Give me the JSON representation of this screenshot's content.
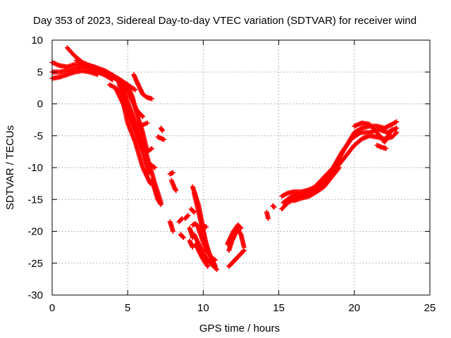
{
  "chart_data": {
    "type": "scatter",
    "title": "Day 353 of 2023, Sidereal Day-to-day VTEC variation (SDTVAR) for receiver wind",
    "xlabel": "GPS time / hours",
    "ylabel": "SDTVAR / TECUs",
    "xlim": [
      0,
      25
    ],
    "ylim": [
      -30,
      10
    ],
    "xticks": [
      0,
      5,
      10,
      15,
      20,
      25
    ],
    "yticks": [
      10,
      5,
      0,
      -5,
      -10,
      -15,
      -20,
      -25,
      -30
    ],
    "grid": true,
    "marker": "+",
    "series": [
      {
        "name": "SDTVAR",
        "color": "#ff0000",
        "tracks": [
          {
            "x": [
              0.0,
              0.5,
              1.0,
              1.5,
              2.0,
              2.5,
              3.0,
              3.5,
              4.0,
              4.5,
              5.0
            ],
            "y": [
              6.5,
              6.0,
              5.8,
              6.2,
              6.0,
              5.7,
              5.3,
              4.8,
              4.2,
              3.5,
              3.0
            ]
          },
          {
            "x": [
              0.0,
              0.5,
              1.0,
              1.5,
              2.0,
              2.5,
              3.0,
              3.5,
              4.0
            ],
            "y": [
              5.0,
              5.0,
              5.2,
              5.5,
              5.8,
              5.5,
              5.0,
              4.5,
              3.8
            ]
          },
          {
            "x": [
              0.0,
              0.5,
              1.0,
              1.5,
              2.0,
              2.5,
              3.0
            ],
            "y": [
              4.0,
              4.2,
              4.6,
              5.0,
              5.2,
              5.0,
              4.6
            ]
          },
          {
            "x": [
              1.0,
              1.5,
              2.0,
              2.5,
              3.0,
              3.5,
              4.0,
              4.5,
              5.0,
              5.5
            ],
            "y": [
              8.8,
              7.5,
              6.5,
              6.0,
              5.6,
              5.2,
              4.5,
              3.8,
              3.0,
              2.2
            ]
          },
          {
            "x": [
              1.6,
              2.2,
              2.8,
              3.4,
              4.0,
              4.4,
              5.0,
              5.5,
              6.0,
              6.5
            ],
            "y": [
              6.8,
              6.2,
              5.8,
              5.2,
              4.5,
              3.5,
              -3.0,
              -6.0,
              -10.0,
              -12.5
            ]
          },
          {
            "x": [
              3.8,
              4.2,
              4.5,
              5.0,
              5.3,
              5.6,
              6.0,
              6.4
            ],
            "y": [
              3.0,
              2.5,
              1.0,
              -1.5,
              -3.0,
              -5.0,
              -7.5,
              -11.0
            ]
          },
          {
            "x": [
              4.5,
              4.8,
              5.2,
              5.6,
              6.0,
              6.5,
              6.8,
              7.2
            ],
            "y": [
              3.2,
              1.5,
              -1.0,
              -3.5,
              -6.0,
              -10.0,
              -12.5,
              -15.5
            ]
          },
          {
            "x": [
              5.0,
              5.3,
              5.6,
              6.0,
              6.3,
              6.6
            ],
            "y": [
              2.8,
              1.2,
              -1.5,
              -4.5,
              -7.5,
              -7.0
            ]
          },
          {
            "x": [
              4.8,
              5.0,
              5.3,
              5.6,
              6.0
            ],
            "y": [
              2.8,
              2.0,
              0.5,
              -1.0,
              -2.0
            ]
          },
          {
            "x": [
              4.6,
              4.8,
              5.0,
              5.4,
              5.8,
              6.3
            ],
            "y": [
              3.0,
              0.0,
              -1.5,
              -3.0,
              -3.5,
              -3.0
            ]
          },
          {
            "x": [
              5.4,
              5.6,
              5.8,
              6.0,
              6.3,
              6.6
            ],
            "y": [
              4.6,
              3.5,
              2.5,
              1.5,
              1.0,
              0.8
            ]
          },
          {
            "x": [
              7.0,
              7.2,
              7.4
            ],
            "y": [
              -5.2,
              -5.4,
              -5.6
            ]
          },
          {
            "x": [
              7.2,
              7.3
            ],
            "y": [
              -3.8,
              -4.2
            ]
          },
          {
            "x": [
              6.5,
              6.8
            ],
            "y": [
              -9.5,
              -10.0
            ]
          },
          {
            "x": [
              7.8,
              8.0
            ],
            "y": [
              -11.0,
              -10.8
            ]
          },
          {
            "x": [
              6.6,
              6.8,
              7.0,
              7.2
            ],
            "y": [
              -12.0,
              -13.5,
              -15.0,
              -15.8
            ]
          },
          {
            "x": [
              7.9,
              8.0,
              8.1,
              8.2
            ],
            "y": [
              -12.0,
              -12.6,
              -13.2,
              -13.6
            ]
          },
          {
            "x": [
              7.8,
              7.9,
              8.0
            ],
            "y": [
              -18.5,
              -19.2,
              -20.0
            ]
          },
          {
            "x": [
              8.4,
              8.6
            ],
            "y": [
              -18.5,
              -18.0
            ]
          },
          {
            "x": [
              8.5,
              8.7
            ],
            "y": [
              -20.5,
              -21.0
            ]
          },
          {
            "x": [
              9.2,
              9.4
            ],
            "y": [
              -16.5,
              -17.0
            ]
          },
          {
            "x": [
              9.3,
              9.5
            ],
            "y": [
              -19.0,
              -18.8
            ]
          },
          {
            "x": [
              9.1,
              9.3
            ],
            "y": [
              -21.5,
              -22.5
            ]
          },
          {
            "x": [
              9.1,
              9.2,
              9.3
            ],
            "y": [
              -19.5,
              -20.2,
              -21.0
            ]
          },
          {
            "x": [
              8.8,
              9.0
            ],
            "y": [
              -18.0,
              -17.5
            ]
          },
          {
            "x": [
              9.4,
              9.6,
              9.8,
              10.0,
              10.2,
              10.4,
              10.6,
              10.8
            ],
            "y": [
              -14.0,
              -16.0,
              -18.0,
              -20.0,
              -22.0,
              -23.5,
              -24.5,
              -25.5
            ]
          },
          {
            "x": [
              9.3,
              9.5,
              9.7,
              9.9,
              10.1,
              10.3
            ],
            "y": [
              -13.0,
              -14.5,
              -16.0,
              -18.5,
              -21.0,
              -23.0
            ]
          },
          {
            "x": [
              9.4,
              9.7,
              10.0,
              10.3,
              10.6,
              10.9
            ],
            "y": [
              -20.5,
              -22.0,
              -23.5,
              -24.5,
              -25.3,
              -26.0
            ]
          },
          {
            "x": [
              9.6,
              9.9,
              10.2,
              10.5,
              10.8
            ],
            "y": [
              -19.0,
              -21.0,
              -23.0,
              -24.0,
              -24.5
            ]
          },
          {
            "x": [
              9.9,
              10.2
            ],
            "y": [
              -19.0,
              -19.3
            ]
          },
          {
            "x": [
              9.5,
              9.7,
              9.9,
              10.1,
              10.3
            ],
            "y": [
              -22.0,
              -23.0,
              -24.0,
              -24.8,
              -25.5
            ]
          },
          {
            "x": [
              11.7,
              11.9,
              12.1,
              12.3,
              12.5,
              12.7
            ],
            "y": [
              -25.5,
              -25.0,
              -24.5,
              -24.0,
              -23.5,
              -23.0
            ]
          },
          {
            "x": [
              11.6,
              11.8,
              12.0,
              12.3,
              12.5
            ],
            "y": [
              -22.0,
              -21.0,
              -20.0,
              -19.0,
              -19.5
            ]
          },
          {
            "x": [
              11.7,
              11.9,
              12.1,
              12.3,
              12.5,
              12.7
            ],
            "y": [
              -23.0,
              -21.5,
              -20.5,
              -19.8,
              -20.5,
              -22.5
            ]
          },
          {
            "x": [
              14.2,
              14.3
            ],
            "y": [
              -17.0,
              -18.0
            ]
          },
          {
            "x": [
              14.6,
              14.7
            ],
            "y": [
              -16.0,
              -16.2
            ]
          },
          {
            "x": [
              15.2,
              15.6,
              16.0,
              16.5,
              17.0,
              17.5,
              18.0,
              18.5,
              19.0,
              19.5,
              20.0,
              20.5,
              21.0,
              21.5,
              22.0,
              22.5,
              22.8
            ],
            "y": [
              -16.5,
              -15.5,
              -15.0,
              -14.5,
              -14.2,
              -13.5,
              -12.5,
              -11.0,
              -9.5,
              -8.0,
              -6.5,
              -5.5,
              -5.0,
              -5.2,
              -5.5,
              -5.2,
              -4.5
            ]
          },
          {
            "x": [
              15.2,
              15.6,
              16.0,
              16.5,
              17.0,
              17.5,
              18.0,
              18.5,
              19.0,
              19.5,
              20.0,
              20.5,
              21.0,
              21.5,
              22.0,
              22.5,
              22.8
            ],
            "y": [
              -14.5,
              -14.0,
              -13.8,
              -13.8,
              -13.5,
              -13.0,
              -12.0,
              -10.5,
              -8.5,
              -6.5,
              -4.5,
              -3.8,
              -3.5,
              -3.5,
              -3.8,
              -3.2,
              -2.8
            ]
          },
          {
            "x": [
              15.3,
              15.7,
              16.2,
              16.8,
              17.4,
              18.0,
              18.6,
              19.2,
              19.8,
              20.4,
              21.0,
              21.6,
              22.2,
              22.8
            ],
            "y": [
              -15.5,
              -14.8,
              -14.2,
              -13.8,
              -13.0,
              -11.5,
              -10.0,
              -7.5,
              -5.5,
              -4.5,
              -4.5,
              -4.0,
              -4.5,
              -3.8
            ]
          },
          {
            "x": [
              16.0,
              16.5,
              17.0,
              17.5,
              18.0,
              18.5,
              19.0
            ],
            "y": [
              -15.2,
              -14.8,
              -14.5,
              -13.8,
              -13.0,
              -11.5,
              -10.0
            ]
          },
          {
            "x": [
              20.0,
              20.5,
              21.0,
              21.5,
              22.0,
              22.5
            ],
            "y": [
              -3.5,
              -3.0,
              -3.2,
              -4.5,
              -6.0,
              -4.0
            ]
          },
          {
            "x": [
              21.5,
              21.8,
              22.1
            ],
            "y": [
              -6.5,
              -6.8,
              -7.0
            ]
          }
        ]
      }
    ]
  }
}
